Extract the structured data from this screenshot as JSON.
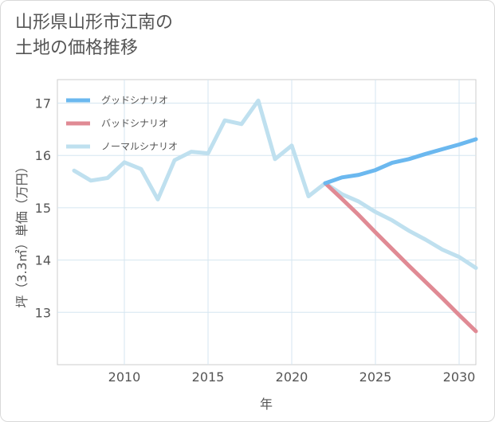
{
  "title_line1": "山形県山形市江南の",
  "title_line2": "土地の価格推移",
  "chart_data": {
    "type": "line",
    "xlabel": "年",
    "ylabel": "坪（3.3㎡）単価（万円）",
    "xlim": [
      2006,
      2031
    ],
    "ylim": [
      12,
      17.45
    ],
    "x_ticks": [
      2010,
      2015,
      2020,
      2025,
      2030
    ],
    "y_ticks": [
      13,
      14,
      15,
      16,
      17
    ],
    "grid": true,
    "legend_position": "top-left",
    "series": [
      {
        "name": "グッドシナリオ",
        "color": "#6bb8ef",
        "x": [
          2022,
          2023,
          2024,
          2025,
          2026,
          2027,
          2028,
          2029,
          2030,
          2031
        ],
        "y": [
          15.47,
          15.58,
          15.63,
          15.72,
          15.86,
          15.93,
          16.03,
          16.12,
          16.21,
          16.31
        ]
      },
      {
        "name": "バッドシナリオ",
        "color": "#e08a94",
        "x": [
          2022,
          2023,
          2024,
          2025,
          2026,
          2027,
          2028,
          2029,
          2030,
          2031
        ],
        "y": [
          15.47,
          15.17,
          14.86,
          14.53,
          14.21,
          13.89,
          13.58,
          13.27,
          12.95,
          12.64
        ]
      },
      {
        "name": "ノーマルシナリオ",
        "color": "#bfe0ef",
        "x": [
          2007,
          2008,
          2009,
          2010,
          2011,
          2012,
          2013,
          2014,
          2015,
          2016,
          2017,
          2018,
          2019,
          2020,
          2021,
          2022,
          2023,
          2024,
          2025,
          2026,
          2027,
          2028,
          2029,
          2030,
          2031
        ],
        "y": [
          15.71,
          15.52,
          15.57,
          15.87,
          15.74,
          15.16,
          15.91,
          16.07,
          16.04,
          16.67,
          16.6,
          17.05,
          15.93,
          16.19,
          15.22,
          15.47,
          15.26,
          15.12,
          14.92,
          14.76,
          14.56,
          14.39,
          14.2,
          14.06,
          13.85
        ]
      }
    ]
  }
}
